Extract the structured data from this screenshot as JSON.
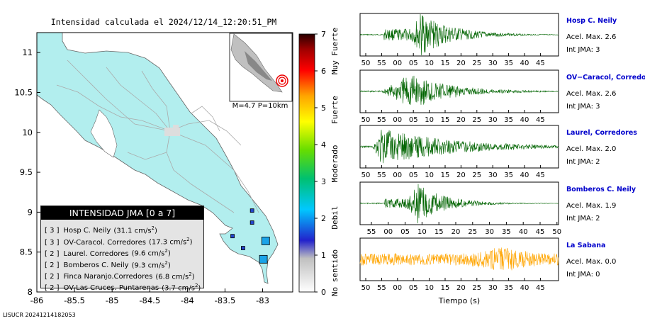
{
  "map": {
    "title": "Intensidad calculada el 2024/12/14_12:20:51_PM",
    "x_ticks": [
      "-86",
      "-85.5",
      "-85",
      "-84.5",
      "-84",
      "-83.5",
      "-83"
    ],
    "y_ticks": [
      "11",
      "10.5",
      "10",
      "9.5",
      "9",
      "8.5",
      "8"
    ],
    "inset_text": "M=4.7 P=10km",
    "footer_id": "LISUCR 20241214182053",
    "land_color": "#b2eeee",
    "legend": {
      "title": "INTENSIDAD JMA [0 a 7]",
      "items": [
        {
          "level": "[ 3 ]",
          "name": "Hosp C. Neily",
          "acc": "(31.1 cm/s",
          "sup": "2",
          "close": ")"
        },
        {
          "level": "[ 3 ]",
          "name": "OV-Caracol. Corredores",
          "acc": "(17.3 cm/s",
          "sup": "2",
          "close": ")"
        },
        {
          "level": "[ 2 ]",
          "name": "Laurel. Corredores",
          "acc": "(9.6 cm/s",
          "sup": "2",
          "close": ")"
        },
        {
          "level": "[ 2 ]",
          "name": "Bomberos C. Neily",
          "acc": "(9.3 cm/s",
          "sup": "2",
          "close": ")"
        },
        {
          "level": "[ 2 ]",
          "name": "Finca Naranjo.Corredores",
          "acc": "(6.8 cm/s",
          "sup": "2",
          "close": ")"
        },
        {
          "level": "[ 2 ]",
          "name": "OV-Las Cruces. Puntarenas",
          "acc": "(3.7 cm/s",
          "sup": "2",
          "close": ")"
        }
      ]
    }
  },
  "colorbar": {
    "ticks": [
      "0",
      "1",
      "2",
      "3",
      "4",
      "5",
      "6",
      "7"
    ],
    "labels": [
      "No sentido",
      "Debil",
      "Moderado",
      "Fuerte",
      "Muy Fuerte"
    ]
  },
  "seismograms": {
    "xlabel": "Tiempo (s)",
    "traces": [
      {
        "station": "Hosp C. Neily",
        "acel": "Acel. Max. 2.6",
        "int": "Int JMA: 3",
        "color": "#006400",
        "ticks": [
          "50",
          "55",
          "00",
          "05",
          "10",
          "15",
          "20",
          "25",
          "30",
          "35",
          "40",
          "45"
        ]
      },
      {
        "station": "OV−Caracol, Corredore",
        "acel": "Acel. Max. 2.6",
        "int": "Int JMA: 3",
        "color": "#006400",
        "ticks": [
          "50",
          "55",
          "00",
          "05",
          "10",
          "15",
          "20",
          "25",
          "30",
          "35",
          "40",
          "45"
        ]
      },
      {
        "station": "Laurel, Corredores",
        "acel": "Acel. Max. 2.0",
        "int": "Int JMA: 2",
        "color": "#006400",
        "ticks": [
          "50",
          "55",
          "00",
          "05",
          "10",
          "15",
          "20",
          "25",
          "30",
          "35",
          "40",
          "45"
        ]
      },
      {
        "station": "Bomberos C. Neily",
        "acel": "Acel. Max. 1.9",
        "int": "Int JMA: 2",
        "color": "#006400",
        "ticks": [
          "55",
          "00",
          "05",
          "10",
          "15",
          "20",
          "25",
          "30",
          "35",
          "40",
          "45",
          "50"
        ]
      },
      {
        "station": "La Sabana",
        "acel": "Acel. Max. 0.0",
        "int": "Int JMA: 0",
        "color": "#ffa500",
        "ticks": [
          "50",
          "55",
          "00",
          "05",
          "10",
          "15",
          "20",
          "25",
          "30",
          "35",
          "40",
          "45"
        ]
      }
    ]
  },
  "chart_data": [
    {
      "type": "scatter",
      "title": "Intensidad calculada el 2024/12/14_12:20:51_PM",
      "xlim": [
        -86,
        -82.6
      ],
      "ylim": [
        8,
        11.25
      ],
      "stations": [
        {
          "name": "Hosp C. Neily",
          "lon": -82.96,
          "lat": 8.64,
          "intensity": 3
        },
        {
          "name": "OV-Caracol. Corredores",
          "lon": -82.99,
          "lat": 8.41,
          "intensity": 3
        },
        {
          "name": "Laurel. Corredores",
          "lon": -83.14,
          "lat": 8.87,
          "intensity": 2
        },
        {
          "name": "Bomberos C. Neily",
          "lon": -83.26,
          "lat": 8.55,
          "intensity": 2
        },
        {
          "name": "Finca Naranjo.Corredores",
          "lon": -83.14,
          "lat": 9.02,
          "intensity": 2
        },
        {
          "name": "OV-Las Cruces. Puntarenas",
          "lon": -83.4,
          "lat": 8.7,
          "intensity": 2
        }
      ]
    },
    {
      "type": "line",
      "series": [
        {
          "name": "Hosp C. Neily",
          "max_acceleration": 2.6,
          "jma": 3
        },
        {
          "name": "OV−Caracol, Corredore",
          "max_acceleration": 2.6,
          "jma": 3
        },
        {
          "name": "Laurel, Corredores",
          "max_acceleration": 2.0,
          "jma": 2
        },
        {
          "name": "Bomberos C. Neily",
          "max_acceleration": 1.9,
          "jma": 2
        },
        {
          "name": "La Sabana",
          "max_acceleration": 0.0,
          "jma": 0
        }
      ],
      "xlabel": "Tiempo (s)"
    }
  ]
}
